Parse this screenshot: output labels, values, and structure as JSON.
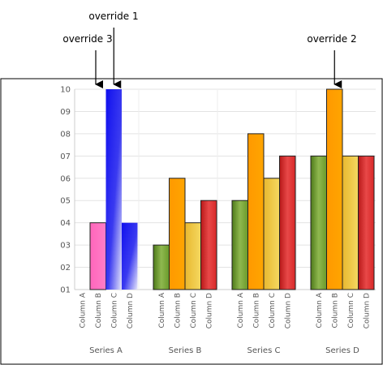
{
  "chart_data": {
    "type": "bar",
    "groups": [
      "Series A",
      "Series B",
      "Series C",
      "Series D"
    ],
    "categories": [
      "Column A",
      "Column B",
      "Column C",
      "Column D"
    ],
    "values": [
      [
        0,
        4,
        10,
        4
      ],
      [
        3,
        6,
        4,
        5
      ],
      [
        5,
        8,
        6,
        7
      ],
      [
        7,
        10,
        7,
        7
      ]
    ],
    "y_ticks": [
      "01",
      "02",
      "03",
      "04",
      "05",
      "06",
      "07",
      "08",
      "09",
      "10"
    ],
    "ylim": [
      1,
      10
    ],
    "grid": true,
    "colors": {
      "Column A": "#6a9a2a",
      "Column B": "#ffa500",
      "Column C": "#f0c840",
      "Column D": "#d82828",
      "override_blue": "#1010ee",
      "override_pink": "#ff66bb"
    },
    "overrides": [
      {
        "label": "override 1",
        "group": 0,
        "column": 2,
        "color": "override_blue"
      },
      {
        "label": "override 2",
        "group": 3,
        "column": 1,
        "color": "Column B"
      },
      {
        "label": "override 3",
        "group": 0,
        "column": 1,
        "color": "override_pink"
      }
    ],
    "override_styles": {
      "0-2": "blue",
      "0-1": "pink",
      "0-3": "blue"
    }
  }
}
